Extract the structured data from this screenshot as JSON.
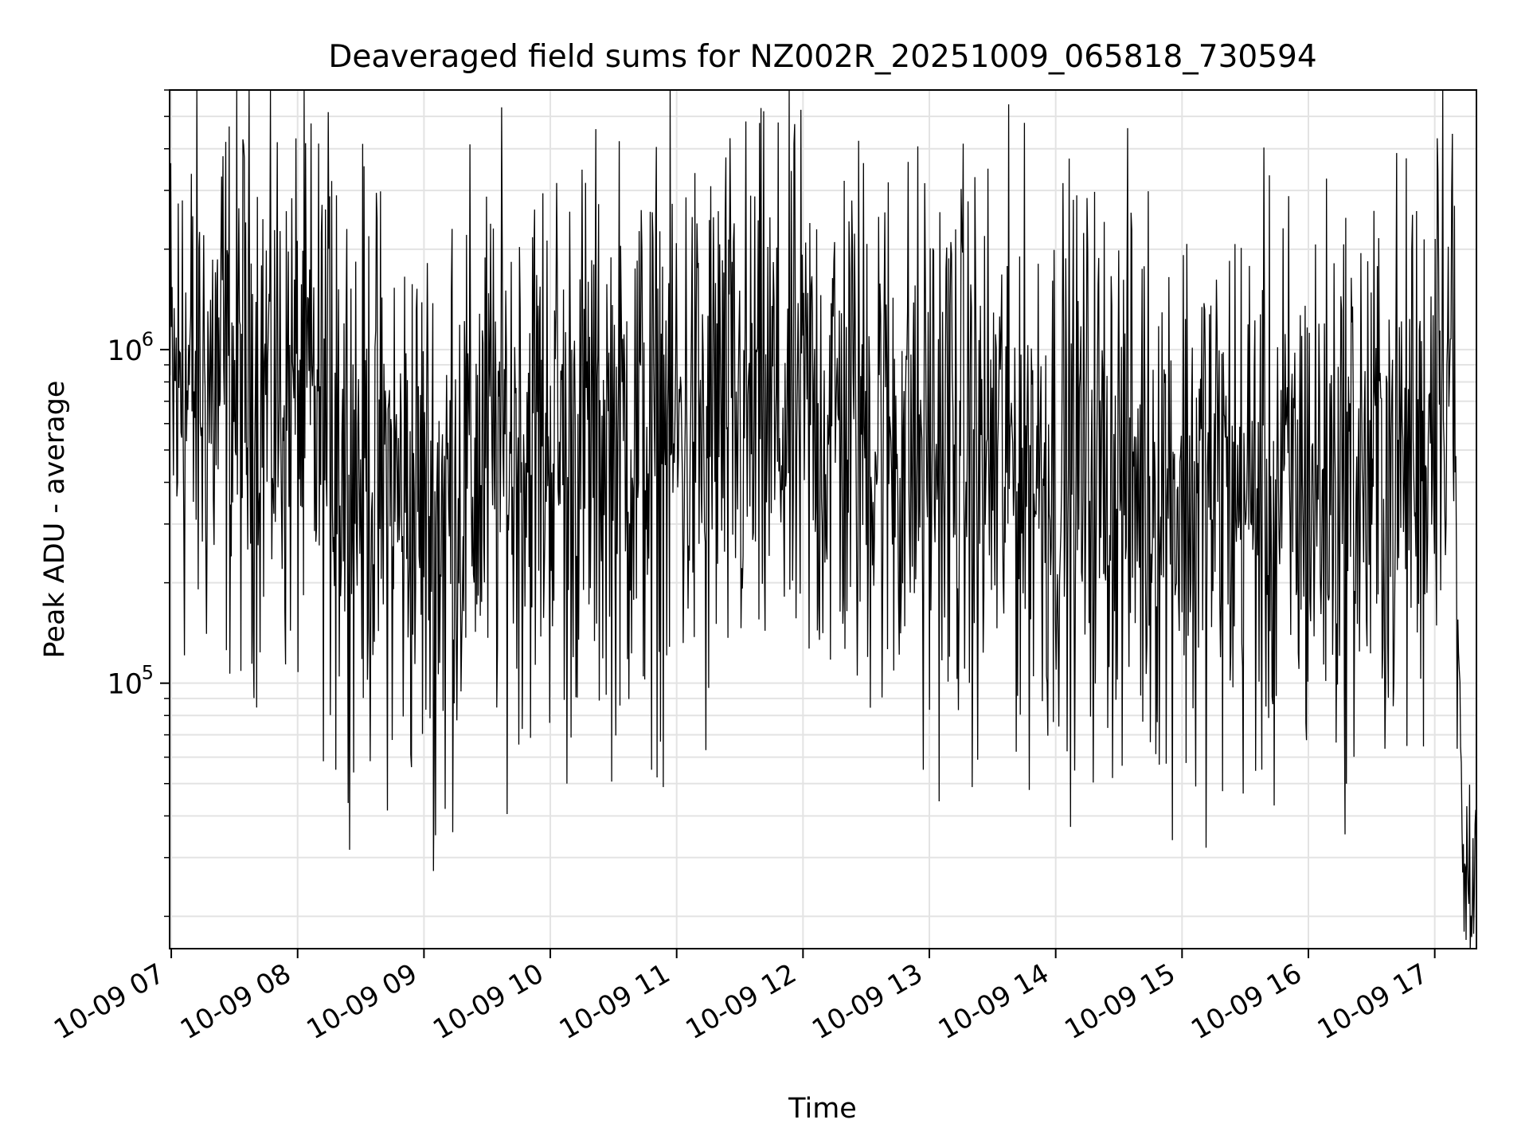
{
  "chart_data": {
    "type": "line",
    "title": "Deaveraged field sums for NZ002R_20251009_065818_730594",
    "xlabel": "Time",
    "ylabel": "Peak ADU - average",
    "yscale": "log",
    "ylim": [
      16000,
      6000000
    ],
    "xlim": [
      6.987,
      17.33
    ],
    "grid": true,
    "x_ticks": [
      {
        "value": 7,
        "label": "10-09 07"
      },
      {
        "value": 8,
        "label": "10-09 08"
      },
      {
        "value": 9,
        "label": "10-09 09"
      },
      {
        "value": 10,
        "label": "10-09 10"
      },
      {
        "value": 11,
        "label": "10-09 11"
      },
      {
        "value": 12,
        "label": "10-09 12"
      },
      {
        "value": 13,
        "label": "10-09 13"
      },
      {
        "value": 14,
        "label": "10-09 14"
      },
      {
        "value": 15,
        "label": "10-09 15"
      },
      {
        "value": 16,
        "label": "10-09 16"
      },
      {
        "value": 17,
        "label": "10-09 17"
      }
    ],
    "y_ticks": [
      {
        "value": 100000,
        "base": "10",
        "exp": "5"
      },
      {
        "value": 1000000,
        "base": "10",
        "exp": "6"
      }
    ],
    "series": [
      {
        "name": "Deaveraged field sum",
        "color": "#000000",
        "x_unit": "hour of 2025-10-09",
        "profile": [
          {
            "x": 6.99,
            "median": 700000
          },
          {
            "x": 7.3,
            "median": 780000
          },
          {
            "x": 7.6,
            "median": 800000
          },
          {
            "x": 8.0,
            "median": 720000
          },
          {
            "x": 8.4,
            "median": 500000
          },
          {
            "x": 8.8,
            "median": 350000
          },
          {
            "x": 9.1,
            "median": 330000
          },
          {
            "x": 9.5,
            "median": 480000
          },
          {
            "x": 10.0,
            "median": 550000
          },
          {
            "x": 10.5,
            "median": 520000
          },
          {
            "x": 11.0,
            "median": 560000
          },
          {
            "x": 11.5,
            "median": 600000
          },
          {
            "x": 12.0,
            "median": 620000
          },
          {
            "x": 12.4,
            "median": 600000
          },
          {
            "x": 12.8,
            "median": 520000
          },
          {
            "x": 13.2,
            "median": 500000
          },
          {
            "x": 13.6,
            "median": 470000
          },
          {
            "x": 14.0,
            "median": 440000
          },
          {
            "x": 14.4,
            "median": 430000
          },
          {
            "x": 14.8,
            "median": 400000
          },
          {
            "x": 15.2,
            "median": 370000
          },
          {
            "x": 15.6,
            "median": 360000
          },
          {
            "x": 16.0,
            "median": 380000
          },
          {
            "x": 16.5,
            "median": 420000
          },
          {
            "x": 16.9,
            "median": 450000
          },
          {
            "x": 17.05,
            "median": 1200000
          },
          {
            "x": 17.12,
            "median": 1100000
          },
          {
            "x": 17.15,
            "median": 900000
          },
          {
            "x": 17.17,
            "median": 200000
          },
          {
            "x": 17.2,
            "median": 90000
          },
          {
            "x": 17.22,
            "median": 30000
          },
          {
            "x": 17.33,
            "median": 32000
          }
        ],
        "spikes": [
          {
            "x": 7.09,
            "y": 2800000
          },
          {
            "x": 7.41,
            "y": 3800000
          },
          {
            "x": 7.91,
            "y": 2600000
          },
          {
            "x": 8.27,
            "y": 3200000
          },
          {
            "x": 8.31,
            "y": 2900000
          },
          {
            "x": 9.22,
            "y": 2300000
          },
          {
            "x": 11.33,
            "y": 2600000
          },
          {
            "x": 12.6,
            "y": 2500000
          },
          {
            "x": 13.17,
            "y": 2100000
          },
          {
            "x": 16.82,
            "y": 2000000
          },
          {
            "x": 17.02,
            "y": 4300000
          }
        ],
        "dips": [
          {
            "x": 8.3,
            "y": 55000
          },
          {
            "x": 8.9,
            "y": 56000
          },
          {
            "x": 9.09,
            "y": 35000
          },
          {
            "x": 9.17,
            "y": 42000
          },
          {
            "x": 10.13,
            "y": 50000
          },
          {
            "x": 10.8,
            "y": 55000
          },
          {
            "x": 11.23,
            "y": 63000
          },
          {
            "x": 12.95,
            "y": 55000
          },
          {
            "x": 13.38,
            "y": 59000
          },
          {
            "x": 15.11,
            "y": 49000
          },
          {
            "x": 15.73,
            "y": 43000
          },
          {
            "x": 17.23,
            "y": 18000
          },
          {
            "x": 17.25,
            "y": 17000
          }
        ]
      }
    ]
  }
}
